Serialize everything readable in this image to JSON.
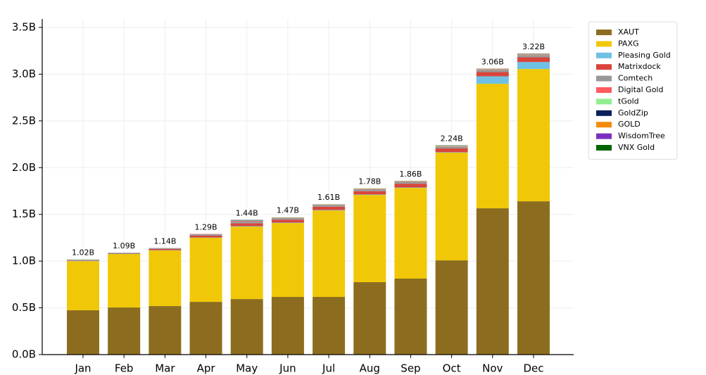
{
  "chart_data": {
    "type": "stacked_bar",
    "categories": [
      "Jan",
      "Feb",
      "Mar",
      "Apr",
      "May",
      "Jun",
      "Jul",
      "Aug",
      "Sep",
      "Oct",
      "Nov",
      "Dec"
    ],
    "series": [
      {
        "name": "XAUT",
        "color": "#8c6d1f",
        "values": [
          0.474,
          0.504,
          0.519,
          0.564,
          0.594,
          0.617,
          0.617,
          0.775,
          0.813,
          1.008,
          1.565,
          1.64
        ]
      },
      {
        "name": "PAXG",
        "color": "#f0c808",
        "values": [
          0.526,
          0.572,
          0.595,
          0.685,
          0.775,
          0.79,
          0.925,
          0.933,
          0.97,
          1.152,
          1.332,
          1.415
        ]
      },
      {
        "name": "Pleasing Gold",
        "color": "#6ec1e4",
        "values": [
          0.005,
          0.004,
          0.003,
          0.003,
          0.005,
          0.005,
          0.005,
          0.005,
          0.005,
          0.005,
          0.08,
          0.075
        ]
      },
      {
        "name": "Matrixdock",
        "color": "#d9453b",
        "values": [
          0.005,
          0.005,
          0.013,
          0.02,
          0.03,
          0.03,
          0.035,
          0.035,
          0.04,
          0.04,
          0.045,
          0.05
        ]
      },
      {
        "name": "Comtech",
        "color": "#999999",
        "values": [
          0.005,
          0.005,
          0.01,
          0.015,
          0.02,
          0.02,
          0.02,
          0.022,
          0.022,
          0.02,
          0.025,
          0.025
        ]
      },
      {
        "name": "Digital Gold",
        "color": "#ff5a5f",
        "values": [
          0.002,
          0,
          0,
          0.003,
          0.006,
          0.004,
          0.004,
          0.005,
          0.005,
          0.005,
          0.005,
          0.005
        ]
      },
      {
        "name": "tGold",
        "color": "#90ee90",
        "values": [
          0.003,
          0,
          0,
          0,
          0.005,
          0.004,
          0.004,
          0.005,
          0.005,
          0.005,
          0.005,
          0.005
        ]
      },
      {
        "name": "GoldZip",
        "color": "#0a1f5c",
        "values": [
          0,
          0,
          0,
          0,
          0.005,
          0,
          0,
          0,
          0,
          0.002,
          0.001,
          0.002
        ]
      },
      {
        "name": "GOLD",
        "color": "#f28c0f",
        "values": [
          0,
          0,
          0,
          0,
          0,
          0,
          0,
          0,
          0,
          0.001,
          0.001,
          0.001
        ]
      },
      {
        "name": "WisdomTree",
        "color": "#7b2fbe",
        "values": [
          0,
          0,
          0,
          0,
          0,
          0,
          0,
          0,
          0,
          0.001,
          0.001,
          0.001
        ]
      },
      {
        "name": "VNX Gold",
        "color": "#006400",
        "values": [
          0,
          0,
          0,
          0,
          0,
          0,
          0,
          0,
          0,
          0.001,
          0,
          0.001
        ]
      }
    ],
    "totals": {
      "values": [
        1.02,
        1.09,
        1.14,
        1.29,
        1.44,
        1.47,
        1.61,
        1.78,
        1.86,
        2.24,
        3.06,
        3.22
      ],
      "value_labels": [
        "1.02B",
        "1.09B",
        "1.14B",
        "1.29B",
        "1.44B",
        "1.47B",
        "1.61B",
        "1.78B",
        "1.86B",
        "2.24B",
        "3.06B",
        "3.22B"
      ]
    },
    "ylim": [
      0,
      3.59
    ],
    "yticks": [
      {
        "value": 0,
        "label": "0.0B"
      },
      {
        "value": 0.5,
        "label": "0.5B"
      },
      {
        "value": 1,
        "label": "1.0B"
      },
      {
        "value": 1.5,
        "label": "1.5B"
      },
      {
        "value": 2,
        "label": "2.0B"
      },
      {
        "value": 2.5,
        "label": "2.5B"
      },
      {
        "value": 3,
        "label": "3.0B"
      },
      {
        "value": 3.5,
        "label": "3.5B"
      }
    ],
    "grid": true,
    "legend": "upper right"
  }
}
